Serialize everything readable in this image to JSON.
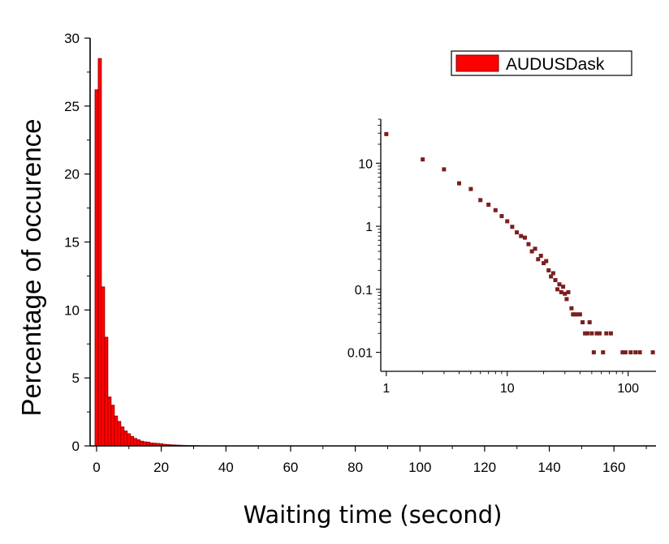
{
  "chart_data": [
    {
      "type": "bar",
      "xlabel": "Waiting time (second)",
      "ylabel": "Percentage of occurence",
      "xlim": [
        -2,
        173
      ],
      "ylim": [
        0,
        30
      ],
      "x_ticks": [
        0,
        20,
        40,
        60,
        80,
        100,
        120,
        140,
        160
      ],
      "y_ticks": [
        0,
        5,
        10,
        15,
        20,
        25,
        30
      ],
      "bin_width": 1,
      "x": [
        0,
        1,
        2,
        3,
        4,
        5,
        6,
        7,
        8,
        9,
        10,
        11,
        12,
        13,
        14,
        15,
        16,
        17,
        18,
        19,
        20,
        21,
        22,
        23,
        24,
        25,
        26,
        27,
        28,
        29,
        30,
        31,
        32
      ],
      "series": [
        {
          "name": "AUDUSDask",
          "color": "#ff0000",
          "values": [
            26.2,
            28.5,
            11.7,
            8.0,
            3.6,
            3.0,
            2.2,
            1.8,
            1.4,
            1.1,
            0.9,
            0.7,
            0.55,
            0.45,
            0.35,
            0.3,
            0.28,
            0.22,
            0.2,
            0.18,
            0.16,
            0.12,
            0.1,
            0.08,
            0.07,
            0.06,
            0.05,
            0.04,
            0.03,
            0.03,
            0.02,
            0.02,
            0.01
          ]
        }
      ],
      "legend": {
        "position": "top-right",
        "entries": [
          "AUDUSDask"
        ]
      },
      "grid": false
    },
    {
      "type": "scatter",
      "role": "inset",
      "xscale": "log",
      "yscale": "log",
      "xlim": [
        0.9,
        170
      ],
      "ylim": [
        0.005,
        50
      ],
      "x_ticks": [
        1,
        10,
        100
      ],
      "x_tick_labels": [
        "1",
        "10",
        "100"
      ],
      "y_ticks": [
        0.01,
        0.1,
        1,
        10
      ],
      "y_tick_labels": [
        "0.01",
        "0.1",
        "1",
        "10"
      ],
      "marker_color": "#7a1f1f",
      "points": [
        [
          1,
          29
        ],
        [
          2,
          11.5
        ],
        [
          3,
          8
        ],
        [
          4,
          4.8
        ],
        [
          5,
          3.9
        ],
        [
          6,
          2.6
        ],
        [
          7,
          2.2
        ],
        [
          8,
          1.8
        ],
        [
          9,
          1.45
        ],
        [
          10,
          1.2
        ],
        [
          11,
          0.98
        ],
        [
          12,
          0.8
        ],
        [
          13,
          0.7
        ],
        [
          14,
          0.66
        ],
        [
          15,
          0.52
        ],
        [
          16,
          0.4
        ],
        [
          17,
          0.44
        ],
        [
          18,
          0.3
        ],
        [
          19,
          0.34
        ],
        [
          20,
          0.26
        ],
        [
          21,
          0.28
        ],
        [
          22,
          0.2
        ],
        [
          23,
          0.16
        ],
        [
          24,
          0.18
        ],
        [
          25,
          0.14
        ],
        [
          26,
          0.1
        ],
        [
          27,
          0.12
        ],
        [
          28,
          0.09
        ],
        [
          29,
          0.11
        ],
        [
          30,
          0.085
        ],
        [
          31,
          0.07
        ],
        [
          32,
          0.09
        ],
        [
          34,
          0.05
        ],
        [
          35,
          0.04
        ],
        [
          36,
          0.04
        ],
        [
          38,
          0.04
        ],
        [
          40,
          0.04
        ],
        [
          42,
          0.03
        ],
        [
          44,
          0.02
        ],
        [
          46,
          0.02
        ],
        [
          48,
          0.03
        ],
        [
          50,
          0.02
        ],
        [
          52,
          0.01
        ],
        [
          55,
          0.02
        ],
        [
          58,
          0.02
        ],
        [
          62,
          0.01
        ],
        [
          66,
          0.02
        ],
        [
          72,
          0.02
        ],
        [
          90,
          0.01
        ],
        [
          95,
          0.01
        ],
        [
          105,
          0.01
        ],
        [
          115,
          0.01
        ],
        [
          125,
          0.01
        ],
        [
          160,
          0.01
        ]
      ]
    }
  ]
}
